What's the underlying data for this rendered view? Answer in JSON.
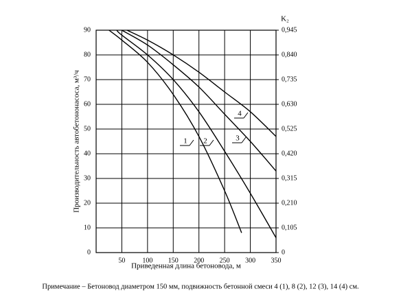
{
  "chart_data": {
    "type": "line",
    "y_label": "Производительность автобетононасоса, м³/ч",
    "x_label": "Приведенная длина бетоновода, м",
    "y2_label": "K₂",
    "note": "Примечание – Бетоновод диаметром 150 мм, подвижность бетонной смеси 4 (1), 8 (2), 12 (3), 14 (4) см.",
    "xlim": [
      0,
      350
    ],
    "xticks": [
      50,
      100,
      150,
      200,
      250,
      300,
      350
    ],
    "ylim": [
      0,
      90
    ],
    "yticks": [
      0,
      10,
      20,
      30,
      40,
      50,
      60,
      70,
      80,
      90
    ],
    "y2lim": [
      0,
      0.945
    ],
    "y2ticks": [
      0,
      {
        "value": 0.105,
        "label": "0,105"
      },
      {
        "value": 0.21,
        "label": "0,210"
      },
      {
        "value": 0.315,
        "label": "0,315"
      },
      {
        "value": 0.42,
        "label": "0,420"
      },
      {
        "value": 0.525,
        "label": "0,525"
      },
      {
        "value": 0.63,
        "label": "0,630"
      },
      {
        "value": 0.735,
        "label": "0,735"
      },
      {
        "value": 0.84,
        "label": "0,840"
      },
      {
        "value": 0.945,
        "label": "0,945"
      }
    ],
    "grid": true,
    "series": [
      {
        "name": "1",
        "color": "#000000",
        "x": [
          25,
          50,
          100,
          150,
          200,
          250,
          283
        ],
        "values": [
          90,
          86,
          77,
          64,
          47,
          25,
          8
        ]
      },
      {
        "name": "2",
        "color": "#000000",
        "x": [
          40,
          50,
          100,
          150,
          200,
          250,
          300,
          350
        ],
        "values": [
          90,
          88,
          80,
          70,
          57,
          41,
          24,
          6
        ]
      },
      {
        "name": "3",
        "color": "#000000",
        "x": [
          50,
          100,
          150,
          200,
          250,
          300,
          350
        ],
        "values": [
          90,
          84,
          76,
          67,
          56,
          45,
          33
        ]
      },
      {
        "name": "4",
        "color": "#000000",
        "x": [
          60,
          100,
          150,
          200,
          250,
          300,
          350
        ],
        "values": [
          90,
          86,
          80,
          73,
          65,
          57,
          47
        ]
      }
    ]
  }
}
